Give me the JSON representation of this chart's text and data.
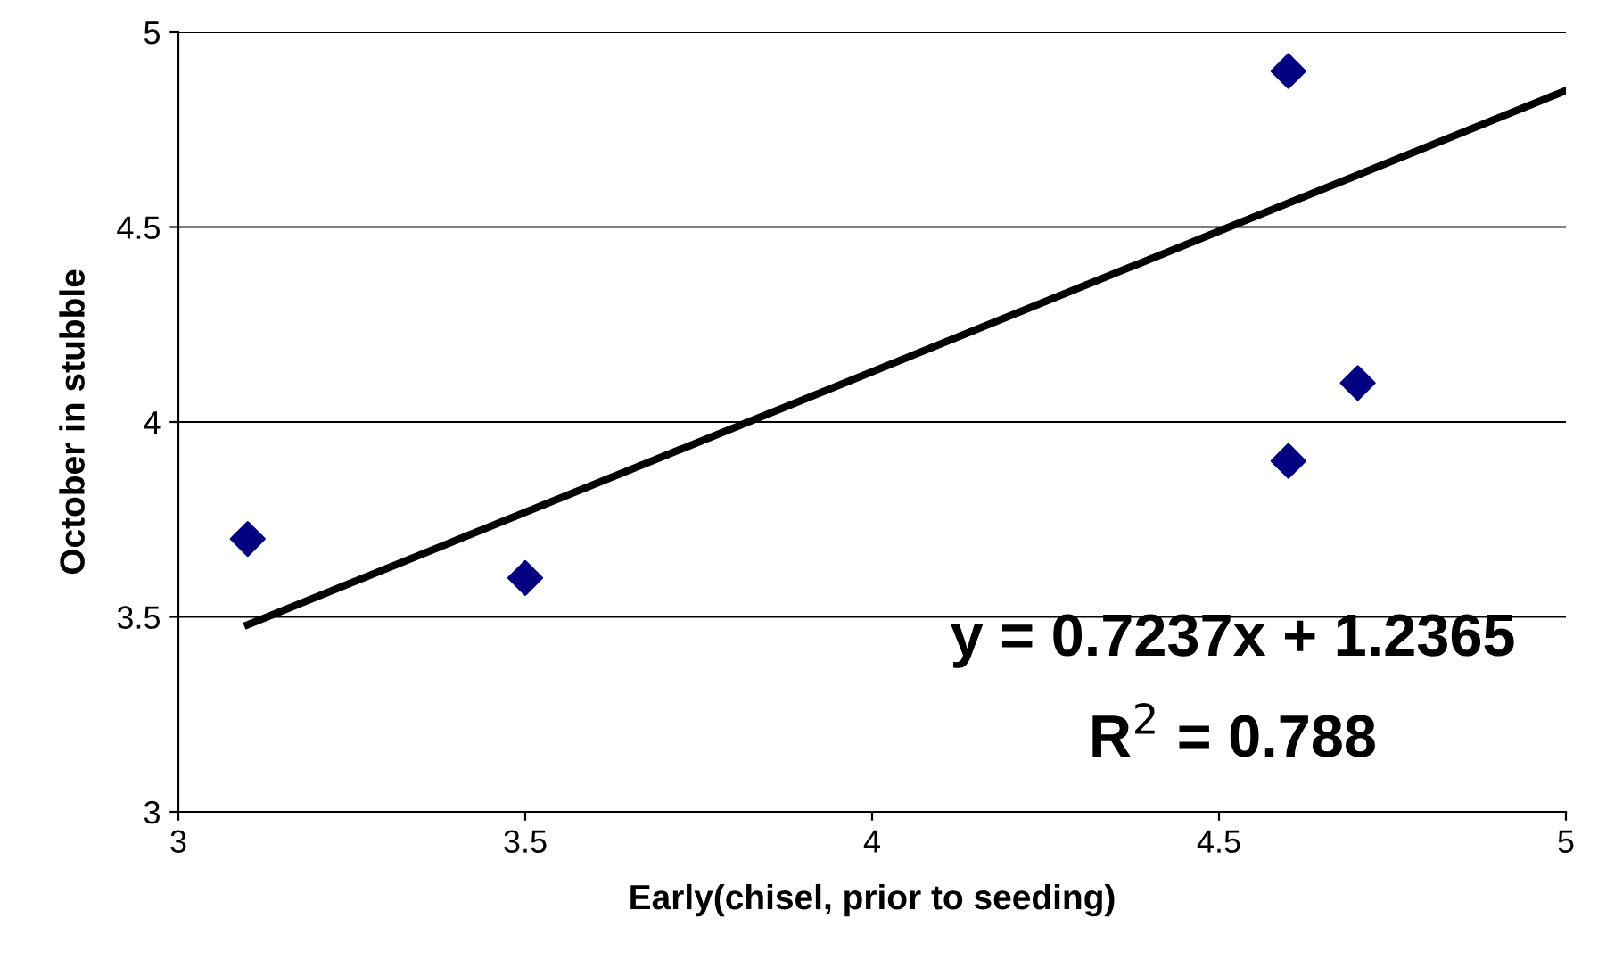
{
  "chart_data": {
    "type": "scatter",
    "xlabel": "Early(chisel, prior to seeding)",
    "ylabel": "October in stubble",
    "xlim": [
      3,
      5
    ],
    "xticks": [
      3,
      3.5,
      4,
      4.5,
      5
    ],
    "ylim": [
      3,
      5
    ],
    "yticks": [
      3,
      3.5,
      4,
      4.5,
      5
    ],
    "grid": "y",
    "legend": false,
    "series": [
      {
        "color": "#000080",
        "marker": "diamond",
        "x": [
          3.1,
          3.5,
          4.6,
          4.6,
          4.7
        ],
        "values": [
          3.7,
          3.6,
          4.9,
          3.9,
          4.1
        ]
      },
      {
        "type": "line",
        "color": "#000000",
        "marker": "none",
        "line_style": "solid",
        "x": [
          3.1,
          5
        ],
        "values": [
          3.48,
          4.85
        ]
      }
    ],
    "annotations": [
      "y = 0.7237x + 1.2365",
      "R$^{2}$ = 0.788"
    ]
  }
}
